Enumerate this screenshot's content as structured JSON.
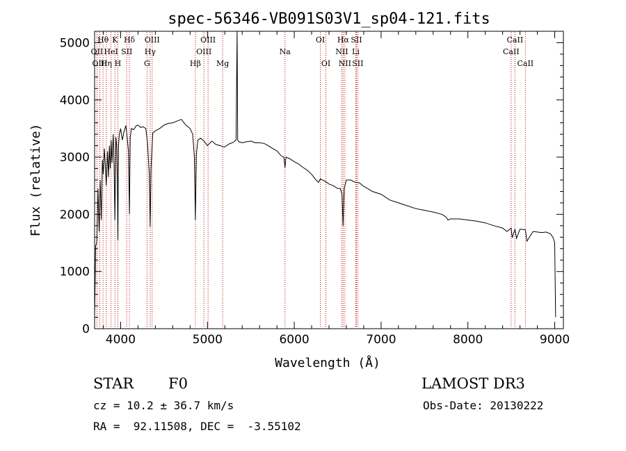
{
  "chart_data": {
    "type": "line",
    "title": "spec-56346-VB091S03V1_sp04-121.fits",
    "xlabel": "Wavelength (Å)",
    "ylabel": "Flux (relative)",
    "xlim": [
      3700,
      9100
    ],
    "ylim": [
      0,
      5200
    ],
    "xticks": [
      4000,
      5000,
      6000,
      7000,
      8000,
      9000
    ],
    "yticks": [
      0,
      1000,
      2000,
      3000,
      4000,
      5000
    ],
    "grid": false,
    "series": [
      {
        "name": "flux",
        "x": [
          3700,
          3712,
          3725,
          3740,
          3752,
          3765,
          3778,
          3790,
          3800,
          3812,
          3822,
          3835,
          3848,
          3860,
          3870,
          3880,
          3890,
          3900,
          3915,
          3925,
          3934,
          3945,
          3955,
          3962,
          3968,
          3975,
          3985,
          4000,
          4020,
          4040,
          4060,
          4075,
          4090,
          4101,
          4110,
          4125,
          4150,
          4180,
          4200,
          4230,
          4260,
          4290,
          4310,
          4330,
          4340,
          4350,
          4370,
          4400,
          4450,
          4500,
          4550,
          4600,
          4650,
          4700,
          4750,
          4800,
          4830,
          4850,
          4861,
          4872,
          4890,
          4920,
          4960,
          5000,
          5050,
          5100,
          5150,
          5175,
          5200,
          5250,
          5300,
          5330,
          5342,
          5348,
          5360,
          5400,
          5450,
          5500,
          5550,
          5600,
          5650,
          5700,
          5750,
          5800,
          5850,
          5880,
          5893,
          5905,
          5950,
          6000,
          6050,
          6100,
          6150,
          6200,
          6250,
          6280,
          6300,
          6350,
          6400,
          6450,
          6500,
          6530,
          6550,
          6563,
          6575,
          6600,
          6650,
          6700,
          6750,
          6800,
          6900,
          7000,
          7100,
          7200,
          7300,
          7400,
          7500,
          7600,
          7700,
          7750,
          7770,
          7800,
          7900,
          8000,
          8100,
          8200,
          8300,
          8400,
          8450,
          8498,
          8510,
          8542,
          8560,
          8600,
          8662,
          8680,
          8750,
          8800,
          8850,
          8900,
          8950,
          8980,
          9000,
          9010
        ],
        "values": [
          200,
          1450,
          1500,
          2450,
          1700,
          2600,
          1900,
          2950,
          2700,
          3150,
          2900,
          2500,
          3100,
          2650,
          3200,
          2800,
          3300,
          2900,
          3400,
          2800,
          1900,
          3350,
          3200,
          2600,
          1550,
          3200,
          3400,
          3500,
          3300,
          3450,
          3550,
          3350,
          3100,
          2000,
          3350,
          3500,
          3480,
          3550,
          3560,
          3520,
          3530,
          3500,
          3250,
          2700,
          1780,
          2800,
          3420,
          3460,
          3500,
          3560,
          3590,
          3600,
          3630,
          3660,
          3560,
          3500,
          3400,
          3000,
          1900,
          3050,
          3300,
          3330,
          3280,
          3200,
          3280,
          3220,
          3200,
          3180,
          3180,
          3230,
          3260,
          3300,
          5200,
          3300,
          3270,
          3250,
          3270,
          3280,
          3250,
          3250,
          3240,
          3200,
          3150,
          3110,
          3020,
          3000,
          2820,
          3000,
          2970,
          2920,
          2880,
          2820,
          2770,
          2700,
          2600,
          2560,
          2620,
          2580,
          2530,
          2500,
          2450,
          2450,
          2350,
          1800,
          2450,
          2600,
          2600,
          2560,
          2550,
          2490,
          2400,
          2350,
          2250,
          2200,
          2150,
          2100,
          2070,
          2040,
          2000,
          1950,
          1900,
          1920,
          1920,
          1900,
          1880,
          1850,
          1800,
          1760,
          1700,
          1760,
          1590,
          1740,
          1580,
          1740,
          1730,
          1530,
          1700,
          1690,
          1680,
          1690,
          1660,
          1600,
          1500,
          200
        ]
      }
    ],
    "lines": [
      {
        "label": "Hθ",
        "x": 3797,
        "row": 1
      },
      {
        "label": "OII",
        "x": 3727,
        "row": 2
      },
      {
        "label": "OIII",
        "x": 3760,
        "row": 3
      },
      {
        "label": "K",
        "x": 3934,
        "row": 1
      },
      {
        "label": "Hδ",
        "x": 4101,
        "row": 1
      },
      {
        "label": "HeI",
        "x": 3889,
        "row": 2
      },
      {
        "label": "SII",
        "x": 4070,
        "row": 2
      },
      {
        "label": "Hη",
        "x": 3835,
        "row": 3
      },
      {
        "label": "H",
        "x": 3968,
        "row": 3
      },
      {
        "label": "OIII",
        "x": 4363,
        "row": 1
      },
      {
        "label": "Hγ",
        "x": 4340,
        "row": 2
      },
      {
        "label": "G",
        "x": 4304,
        "row": 3
      },
      {
        "label": "OIII",
        "x": 5007,
        "row": 1
      },
      {
        "label": "OIII",
        "x": 4959,
        "row": 2
      },
      {
        "label": "Hβ",
        "x": 4861,
        "row": 3
      },
      {
        "label": "Mg",
        "x": 5175,
        "row": 3
      },
      {
        "label": "Na",
        "x": 5893,
        "row": 2
      },
      {
        "label": "OI",
        "x": 6300,
        "row": 1
      },
      {
        "label": "OI",
        "x": 6364,
        "row": 3
      },
      {
        "label": "Hα",
        "x": 6563,
        "row": 1
      },
      {
        "label": "SII",
        "x": 6716,
        "row": 1
      },
      {
        "label": "NII",
        "x": 6548,
        "row": 2
      },
      {
        "label": "Li",
        "x": 6708,
        "row": 2
      },
      {
        "label": "NII",
        "x": 6583,
        "row": 3
      },
      {
        "label": "SII",
        "x": 6731,
        "row": 3
      },
      {
        "label": "CaII",
        "x": 8542,
        "row": 1
      },
      {
        "label": "CaII",
        "x": 8498,
        "row": 2
      },
      {
        "label": "CaII",
        "x": 8662,
        "row": 3
      }
    ]
  },
  "info": {
    "object_class": "STAR",
    "subclass": "F0",
    "survey": "LAMOST DR3",
    "redshift_text": "cz = 10.2 ± 36.7 km/s",
    "obs_date_text": "Obs-Date: 20130222",
    "coords_text": "RA =  92.11508, DEC =  -3.55102"
  }
}
